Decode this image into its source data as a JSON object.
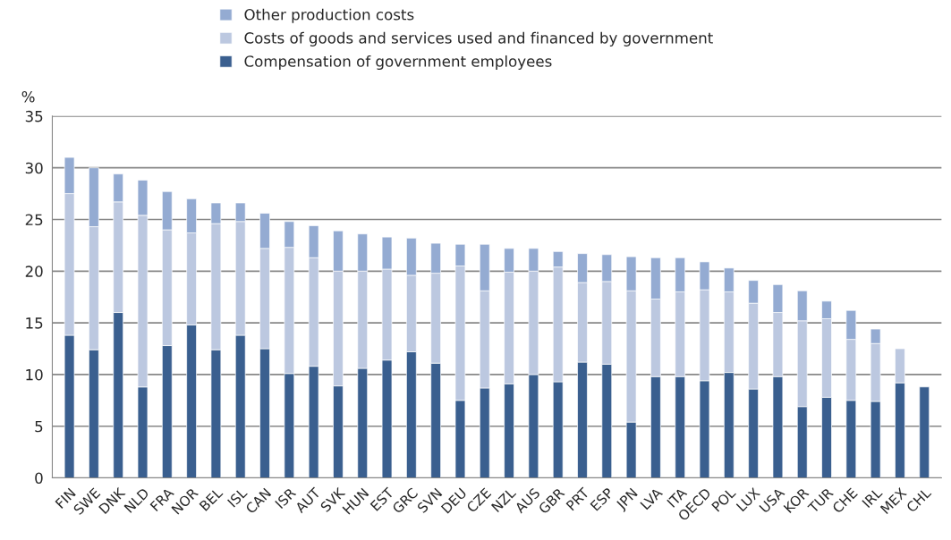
{
  "chart_data": {
    "type": "bar",
    "stacked": true,
    "ylabel": "%",
    "categories": [
      "FIN",
      "SWE",
      "DNK",
      "NLD",
      "FRA",
      "NOR",
      "BEL",
      "ISL",
      "CAN",
      "ISR",
      "AUT",
      "SVK",
      "HUN",
      "EST",
      "GRC",
      "SVN",
      "DEU",
      "CZE",
      "NZL",
      "AUS",
      "GBR",
      "PRT",
      "ESP",
      "JPN",
      "LVA",
      "ITA",
      "OECD",
      "POL",
      "LUX",
      "USA",
      "KOR",
      "TUR",
      "CHE",
      "IRL",
      "MEX",
      "CHL"
    ],
    "series": [
      {
        "name": "Compensation of government employees",
        "color": "#3a5f8f",
        "values": [
          13.8,
          12.4,
          16.0,
          8.8,
          12.8,
          14.8,
          12.4,
          13.8,
          12.5,
          10.1,
          10.8,
          8.9,
          10.6,
          11.4,
          12.2,
          11.1,
          7.5,
          8.7,
          9.1,
          10.0,
          9.3,
          11.2,
          11.0,
          5.4,
          9.8,
          9.8,
          9.4,
          10.2,
          8.6,
          9.8,
          6.9,
          7.8,
          7.5,
          7.4,
          9.2,
          8.8
        ]
      },
      {
        "name": "Costs of goods and services used and financed by government",
        "color": "#bcc8e0",
        "values": [
          13.7,
          11.9,
          10.7,
          16.6,
          11.2,
          8.9,
          12.2,
          11.0,
          9.7,
          12.2,
          10.5,
          11.1,
          9.4,
          8.8,
          7.4,
          8.7,
          13.0,
          9.4,
          10.8,
          10.0,
          11.1,
          7.7,
          8.0,
          12.7,
          7.5,
          8.2,
          8.8,
          7.8,
          8.3,
          6.2,
          8.3,
          7.6,
          5.9,
          5.6,
          3.3,
          null
        ]
      },
      {
        "name": "Other production costs",
        "color": "#94abd2",
        "values": [
          3.5,
          5.7,
          2.7,
          3.4,
          3.7,
          3.3,
          2.0,
          1.8,
          3.4,
          2.5,
          3.1,
          3.9,
          3.6,
          3.1,
          3.6,
          2.9,
          2.1,
          4.5,
          2.3,
          2.2,
          1.5,
          2.8,
          2.6,
          3.3,
          4.0,
          3.3,
          2.7,
          2.3,
          2.2,
          2.7,
          2.9,
          1.7,
          2.8,
          1.4,
          null,
          null
        ]
      }
    ],
    "ylim": [
      0,
      35
    ],
    "yticks": [
      0,
      5,
      10,
      15,
      20,
      25,
      30,
      35
    ],
    "grid": "y",
    "legend": "top"
  }
}
